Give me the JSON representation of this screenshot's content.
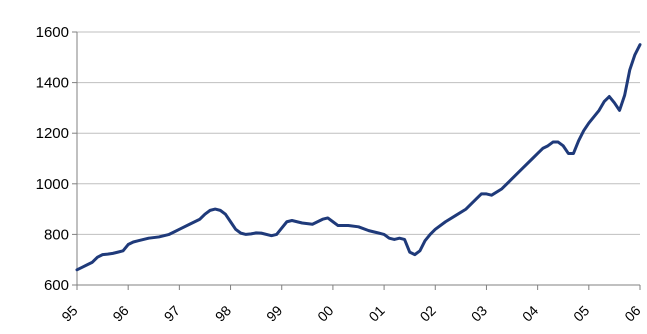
{
  "chart_data": {
    "type": "line",
    "title": "",
    "xlabel": "",
    "ylabel": "",
    "x_tick_labels": [
      "95",
      "96",
      "97",
      "98",
      "99",
      "00",
      "01",
      "02",
      "03",
      "04",
      "05",
      "06"
    ],
    "y_tick_labels": [
      "600",
      "800",
      "1000",
      "1200",
      "1400",
      "1600"
    ],
    "y_ticks": [
      600,
      800,
      1000,
      1200,
      1400,
      1600
    ],
    "ylim": [
      600,
      1600
    ],
    "xlim": [
      1995.0,
      2006.0
    ],
    "grid": "horizontal",
    "legend": "none",
    "colors": {
      "line": "#1f3a7a",
      "grid": "#bfbfbf",
      "axis": "#808080"
    },
    "series": [
      {
        "x": [
          1995.0,
          1995.1,
          1995.2,
          1995.3,
          1995.4,
          1995.5,
          1995.6,
          1995.7,
          1995.8,
          1995.9,
          1996.0,
          1996.1,
          1996.2,
          1996.3,
          1996.4,
          1996.6,
          1996.8,
          1996.9,
          1997.0,
          1997.2,
          1997.4,
          1997.5,
          1997.6,
          1997.7,
          1997.8,
          1997.9,
          1998.0,
          1998.1,
          1998.2,
          1998.3,
          1998.4,
          1998.5,
          1998.6,
          1998.8,
          1998.9,
          1999.0,
          1999.1,
          1999.2,
          1999.4,
          1999.6,
          1999.8,
          1999.9,
          2000.0,
          2000.1,
          2000.2,
          2000.3,
          2000.5,
          2000.7,
          2000.8,
          2000.9,
          2001.0,
          2001.1,
          2001.2,
          2001.3,
          2001.4,
          2001.5,
          2001.6,
          2001.7,
          2001.8,
          2001.9,
          2002.0,
          2002.2,
          2002.4,
          2002.6,
          2002.8,
          2002.9,
          2003.0,
          2003.1,
          2003.3,
          2003.5,
          2003.7,
          2003.9,
          2004.0,
          2004.1,
          2004.2,
          2004.3,
          2004.4,
          2004.5,
          2004.6,
          2004.7,
          2004.8,
          2004.9,
          2005.0,
          2005.2,
          2005.3,
          2005.4,
          2005.5,
          2005.6,
          2005.7,
          2005.8,
          2005.9,
          2006.0
        ],
        "y": [
          660,
          670,
          680,
          690,
          710,
          720,
          722,
          725,
          730,
          735,
          760,
          770,
          775,
          780,
          785,
          790,
          800,
          810,
          820,
          840,
          860,
          880,
          895,
          900,
          895,
          880,
          850,
          820,
          805,
          800,
          802,
          806,
          805,
          795,
          800,
          825,
          850,
          855,
          845,
          840,
          860,
          865,
          850,
          835,
          835,
          835,
          830,
          815,
          810,
          805,
          800,
          785,
          780,
          785,
          780,
          730,
          720,
          735,
          775,
          800,
          820,
          850,
          875,
          900,
          940,
          960,
          960,
          955,
          980,
          1020,
          1060,
          1100,
          1120,
          1140,
          1150,
          1165,
          1165,
          1150,
          1120,
          1120,
          1170,
          1210,
          1240,
          1290,
          1325,
          1345,
          1320,
          1290,
          1350,
          1450,
          1510,
          1550
        ]
      }
    ]
  },
  "partial_title_text": "                                 "
}
